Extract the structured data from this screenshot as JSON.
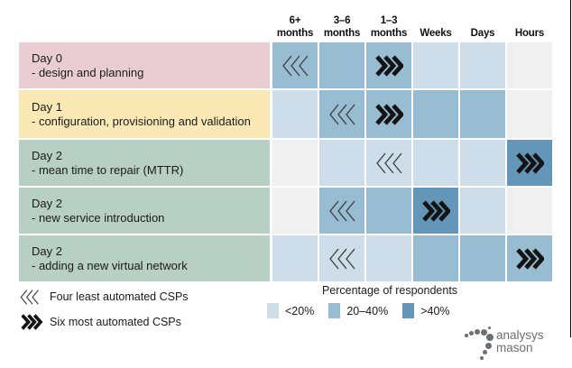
{
  "header": {
    "columns": [
      "6+\nmonths",
      "3–6\nmonths",
      "1–3\nmonths",
      "Weeks",
      "Days",
      "Hours"
    ]
  },
  "rows": [
    {
      "title": "Day 0",
      "desc": "- design and planning",
      "category_color": "#e9cdd3",
      "cells": [
        {
          "level": "20–40%",
          "marker": "least"
        },
        {
          "level": "20–40%",
          "marker": null
        },
        {
          "level": "20–40%",
          "marker": "most"
        },
        {
          "level": "<20%",
          "marker": null
        },
        {
          "level": "<20%",
          "marker": null
        },
        {
          "level": "none",
          "marker": null
        }
      ]
    },
    {
      "title": "Day 1",
      "desc": "- configuration, provisioning and validation",
      "category_color": "#fae9b5",
      "cells": [
        {
          "level": "<20%",
          "marker": null
        },
        {
          "level": "20–40%",
          "marker": "least"
        },
        {
          "level": "20–40%",
          "marker": "most"
        },
        {
          "level": "20–40%",
          "marker": null
        },
        {
          "level": "20–40%",
          "marker": null
        },
        {
          "level": "none",
          "marker": null
        }
      ]
    },
    {
      "title": "Day 2",
      "desc": "- mean time to repair (MTTR)",
      "category_color": "#b8cfc4",
      "cells": [
        {
          "level": "none",
          "marker": null
        },
        {
          "level": "<20%",
          "marker": null
        },
        {
          "level": "<20%",
          "marker": "least"
        },
        {
          "level": "<20%",
          "marker": null
        },
        {
          "level": "<20%",
          "marker": null
        },
        {
          "level": ">40%",
          "marker": "most"
        }
      ]
    },
    {
      "title": "Day 2",
      "desc": "- new service introduction",
      "category_color": "#b8cfc4",
      "cells": [
        {
          "level": "none",
          "marker": null
        },
        {
          "level": "20–40%",
          "marker": "least"
        },
        {
          "level": "20–40%",
          "marker": null
        },
        {
          "level": ">40%",
          "marker": "most"
        },
        {
          "level": "<20%",
          "marker": null
        },
        {
          "level": "none",
          "marker": null
        }
      ]
    },
    {
      "title": "Day 2",
      "desc": "- adding a new virtual network",
      "category_color": "#b8cfc4",
      "cells": [
        {
          "level": "<20%",
          "marker": null
        },
        {
          "level": "<20%",
          "marker": "least"
        },
        {
          "level": "<20%",
          "marker": null
        },
        {
          "level": "20–40%",
          "marker": null
        },
        {
          "level": "20–40%",
          "marker": null
        },
        {
          "level": "20–40%",
          "marker": "most"
        }
      ]
    }
  ],
  "markers_legend": [
    {
      "icon": "least-automated-chevrons-icon",
      "label": "Four least automated CSPs"
    },
    {
      "icon": "most-automated-chevrons-icon",
      "label": "Six most automated CSPs"
    }
  ],
  "legend": {
    "title": "Percentage of respondents",
    "items": [
      {
        "label": "<20%",
        "color": "#cddeea"
      },
      {
        "label": "20–40%",
        "color": "#98bcd2"
      },
      {
        "label": ">40%",
        "color": "#6496ba"
      }
    ],
    "empty_color": "#f0f0f0"
  },
  "logo": {
    "line1": "analysys",
    "line2": "mason",
    "color": "#6d6e71"
  },
  "chart_data": {
    "type": "heatmap",
    "title": "",
    "x_categories": [
      "6+ months",
      "3–6 months",
      "1–3 months",
      "Weeks",
      "Days",
      "Hours"
    ],
    "y_categories": [
      "Day 0 - design and planning",
      "Day 1 - configuration, provisioning and validation",
      "Day 2 - mean time to repair (MTTR)",
      "Day 2 - new service introduction",
      "Day 2 - adding a new virtual network"
    ],
    "values_pct_of_respondents": [
      [
        "20–40%",
        "20–40%",
        "20–40%",
        "<20%",
        "<20%",
        "none"
      ],
      [
        "<20%",
        "20–40%",
        "20–40%",
        "20–40%",
        "20–40%",
        "none"
      ],
      [
        "none",
        "<20%",
        "<20%",
        "<20%",
        "<20%",
        ">40%"
      ],
      [
        "none",
        "20–40%",
        "20–40%",
        ">40%",
        "<20%",
        "none"
      ],
      [
        "<20%",
        "<20%",
        "<20%",
        "20–40%",
        "20–40%",
        "20–40%"
      ]
    ],
    "four_least_automated_csps_marker_column": [
      "6+ months",
      "3–6 months",
      "1–3 months",
      "3–6 months",
      "3–6 months"
    ],
    "six_most_automated_csps_marker_column": [
      "1–3 months",
      "1–3 months",
      "Hours",
      "Weeks",
      "Hours"
    ],
    "legend_title": "Percentage of respondents",
    "legend_bins": [
      "<20%",
      "20–40%",
      ">40%"
    ],
    "legend_position": "bottom",
    "grid": false
  }
}
